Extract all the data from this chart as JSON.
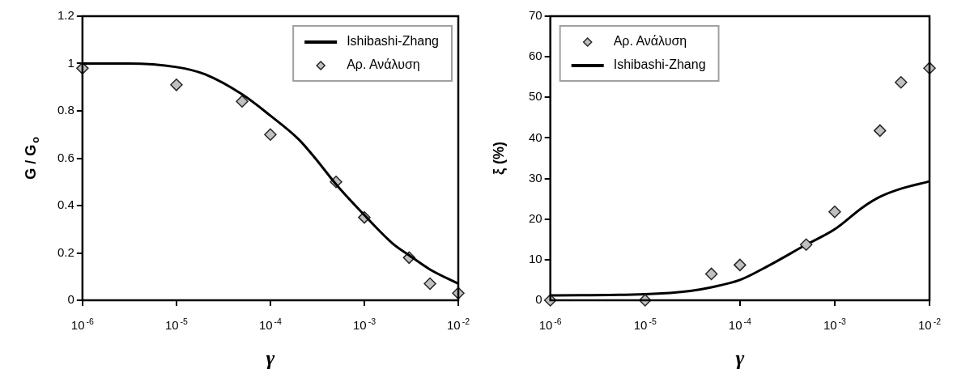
{
  "chart_data": [
    {
      "type": "scatter",
      "xlabel": "γ",
      "ylabel": "G / G$_{o}$",
      "log": "x",
      "xlim": [
        1e-06,
        0.01
      ],
      "ylim": [
        0,
        1.2
      ],
      "xticks": [
        {
          "value": 1e-06,
          "label": "10$^{-6}$"
        },
        {
          "value": 1e-05,
          "label": "10$^{-5}$"
        },
        {
          "value": 0.0001,
          "label": "10$^{-4}$"
        },
        {
          "value": 0.001,
          "label": "10$^{-3}$"
        },
        {
          "value": 0.01,
          "label": "10$^{-2}$"
        }
      ],
      "yticks": [
        0,
        0.2,
        0.4,
        0.6,
        0.8,
        1,
        1.2
      ],
      "grid": false,
      "legend": "top right",
      "series": [
        {
          "name": "Ishibashi-Zhang",
          "type": "line",
          "color": "#000000",
          "marker": "none",
          "x": [
            1e-06,
            3e-06,
            1e-05,
            2e-05,
            5e-05,
            0.0001,
            0.0002,
            0.0003,
            0.0005,
            0.001,
            0.002,
            0.003,
            0.005,
            0.01
          ],
          "values": [
            1,
            1,
            0.985,
            0.955,
            0.87,
            0.78,
            0.68,
            0.6,
            0.49,
            0.36,
            0.24,
            0.19,
            0.13,
            0.07
          ]
        },
        {
          "name": "Αρ. Ανάλυση",
          "type": "scatter",
          "color": "#c0c0c0",
          "marker": "diamond",
          "x": [
            1e-06,
            1e-05,
            5e-05,
            0.0001,
            0.0005,
            0.001,
            0.003,
            0.005,
            0.01
          ],
          "values": [
            0.98,
            0.91,
            0.84,
            0.7,
            0.5,
            0.35,
            0.18,
            0.07,
            0.03
          ]
        }
      ]
    },
    {
      "type": "scatter",
      "xlabel": "γ",
      "ylabel": "ξ (%)",
      "log": "x",
      "xlim": [
        1e-06,
        0.01
      ],
      "ylim": [
        0,
        70
      ],
      "xticks": [
        {
          "value": 1e-06,
          "label": "10$^{-6}$"
        },
        {
          "value": 1e-05,
          "label": "10$^{-5}$"
        },
        {
          "value": 0.0001,
          "label": "10$^{-4}$"
        },
        {
          "value": 0.001,
          "label": "10$^{-3}$"
        },
        {
          "value": 0.01,
          "label": "10$^{-2}$"
        }
      ],
      "yticks": [
        0,
        10,
        20,
        30,
        40,
        50,
        60,
        70
      ],
      "grid": false,
      "legend": "top left",
      "series": [
        {
          "name": "Αρ. Ανάλυση",
          "type": "scatter",
          "color": "#c0c0c0",
          "marker": "diamond",
          "x": [
            1e-06,
            1e-05,
            5e-05,
            0.0001,
            0.0005,
            0.001,
            0.003,
            0.005,
            0.01
          ],
          "values": [
            0,
            0,
            6.5,
            8.7,
            13.7,
            21.8,
            41.8,
            53.7,
            57.2
          ]
        },
        {
          "name": "Ishibashi-Zhang",
          "type": "line",
          "color": "#000000",
          "marker": "none",
          "x": [
            1e-06,
            1e-05,
            3e-05,
            5e-05,
            0.0001,
            0.0002,
            0.0005,
            0.001,
            0.002,
            0.003,
            0.005,
            0.01
          ],
          "values": [
            1.2,
            1.5,
            2.3,
            3.2,
            5,
            8.5,
            13.7,
            17.5,
            23,
            25.5,
            27.5,
            29.3
          ]
        }
      ]
    }
  ]
}
